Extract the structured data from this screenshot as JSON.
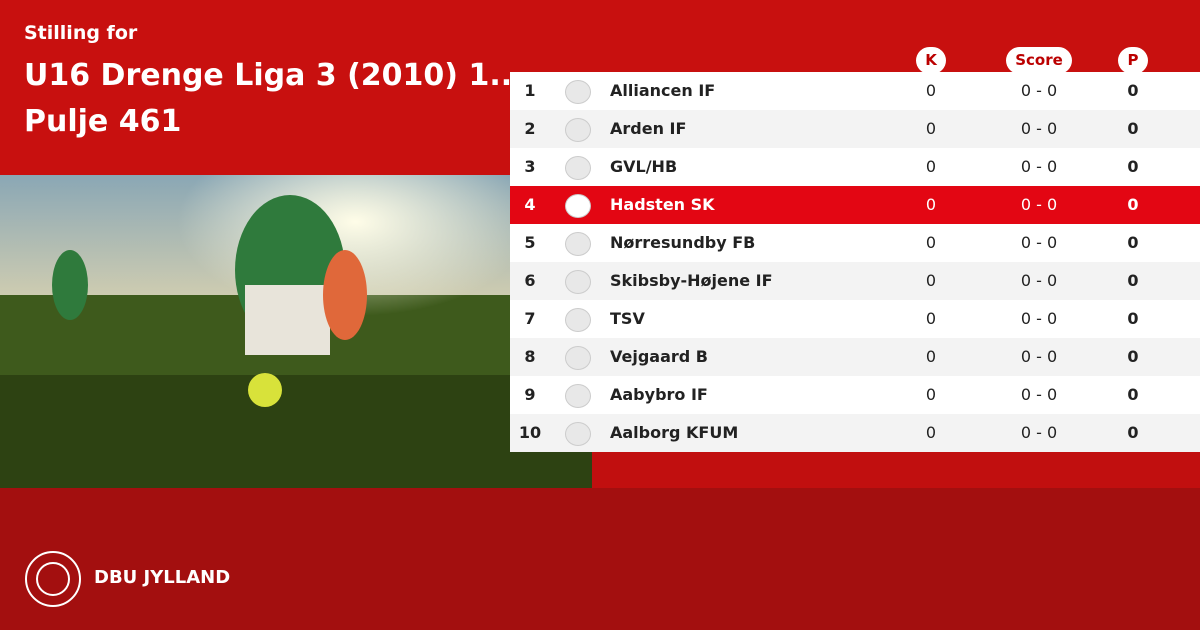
{
  "header": {
    "kicker": "Stilling for",
    "title_lines": [
      "U16 Drenge Liga 3 (2010) 1..",
      "Pulje 461"
    ]
  },
  "table": {
    "columns": [
      "K",
      "Score",
      "P"
    ],
    "rows": [
      {
        "rank": 1,
        "team": "Alliancen IF",
        "k": 0,
        "score": "0 - 0",
        "p": 0
      },
      {
        "rank": 2,
        "team": "Arden IF",
        "k": 0,
        "score": "0 - 0",
        "p": 0
      },
      {
        "rank": 3,
        "team": "GVL/HB",
        "k": 0,
        "score": "0 - 0",
        "p": 0
      },
      {
        "rank": 4,
        "team": "Hadsten SK",
        "k": 0,
        "score": "0 - 0",
        "p": 0,
        "highlighted": true
      },
      {
        "rank": 5,
        "team": "Nørresundby FB",
        "k": 0,
        "score": "0 - 0",
        "p": 0
      },
      {
        "rank": 6,
        "team": "Skibsby-Højene IF",
        "k": 0,
        "score": "0 - 0",
        "p": 0
      },
      {
        "rank": 7,
        "team": "TSV",
        "k": 0,
        "score": "0 - 0",
        "p": 0
      },
      {
        "rank": 8,
        "team": "Vejgaard B",
        "k": 0,
        "score": "0 - 0",
        "p": 0
      },
      {
        "rank": 9,
        "team": "Aabybro IF",
        "k": 0,
        "score": "0 - 0",
        "p": 0
      },
      {
        "rank": 10,
        "team": "Aalborg KFUM",
        "k": 0,
        "score": "0 - 0",
        "p": 0
      }
    ]
  },
  "footer": {
    "brand": "DBU JYLLAND"
  }
}
